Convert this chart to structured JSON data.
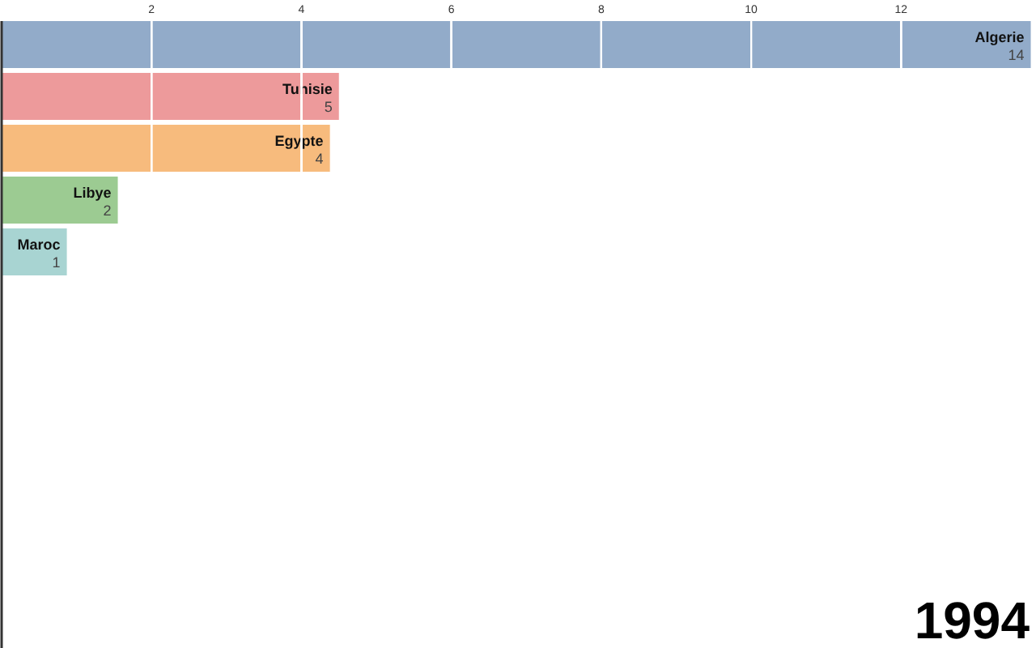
{
  "chart_data": {
    "type": "bar",
    "orientation": "horizontal",
    "categories": [
      "Algerie",
      "Tunisie",
      "Egypte",
      "Libye",
      "Maroc"
    ],
    "values": [
      13.73,
      4.5,
      4.38,
      1.55,
      0.87
    ],
    "value_labels": [
      "14",
      "5",
      "4",
      "2",
      "1"
    ],
    "colors": [
      "#92abc9",
      "#ed9a9b",
      "#f7bb7d",
      "#9ccb92",
      "#a8d4d2"
    ],
    "xlim": [
      0,
      13.8
    ],
    "xticks": [
      2,
      4,
      6,
      8,
      10,
      12
    ],
    "grid": "x",
    "annotations": [
      "1994"
    ]
  }
}
